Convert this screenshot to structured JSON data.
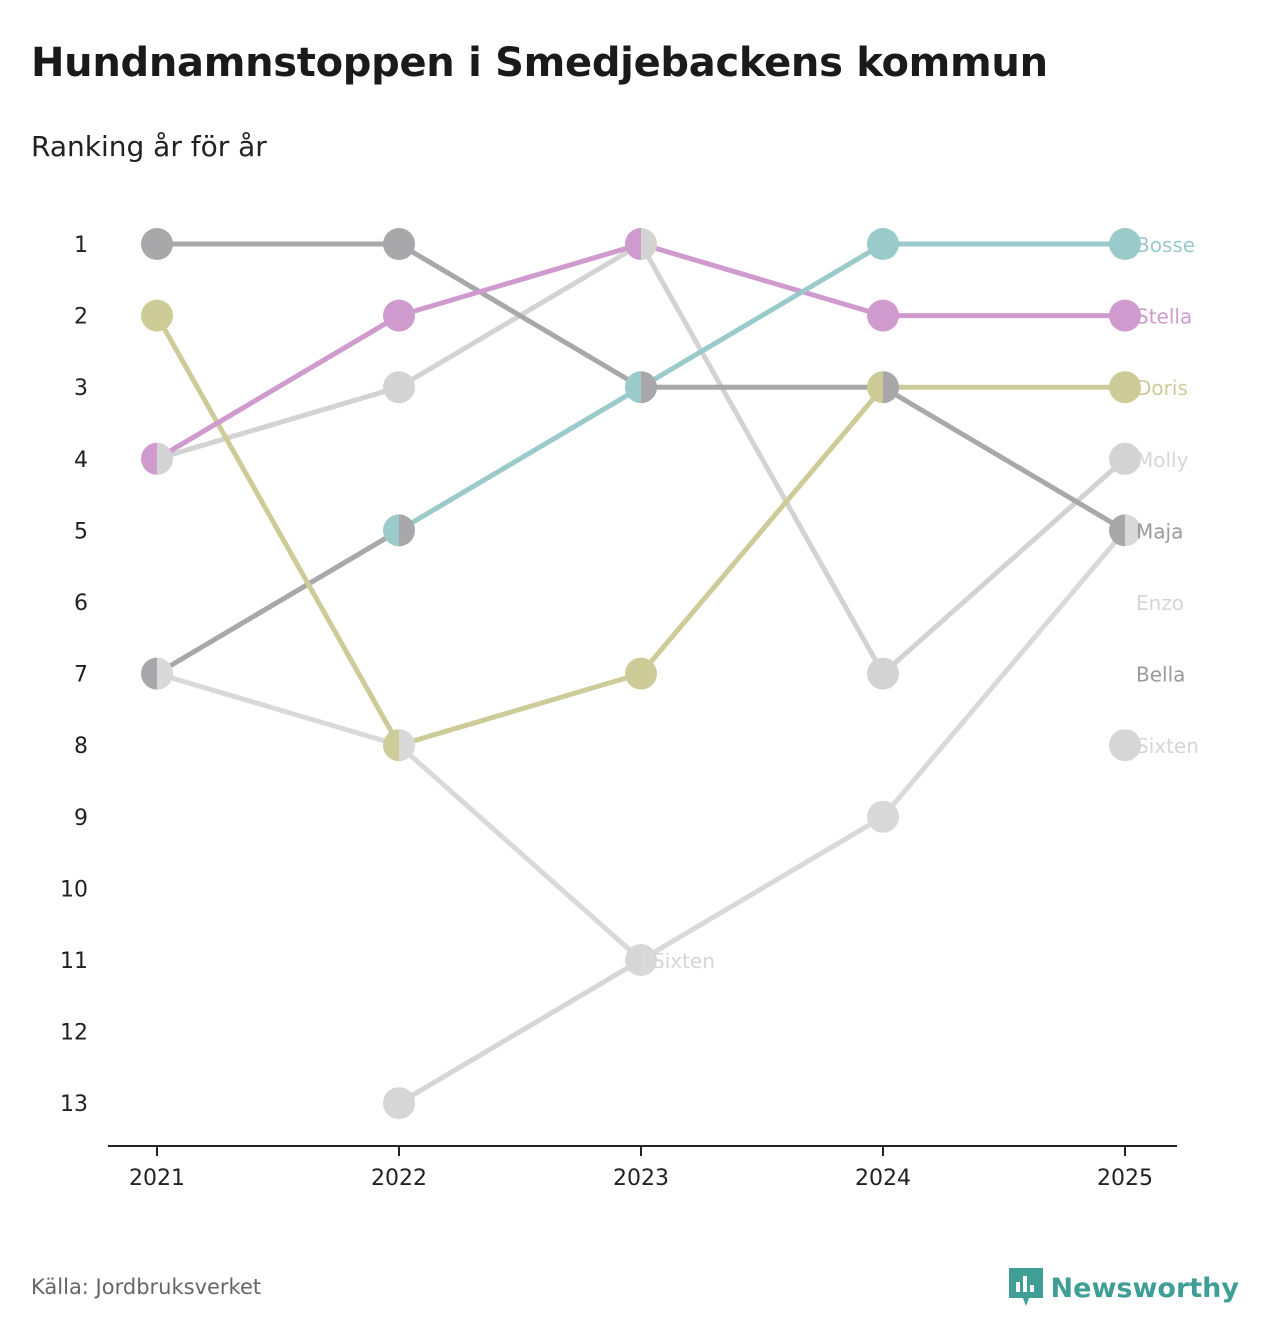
{
  "title": "Hundnamnstoppen i Smedjebackens kommun",
  "subtitle": "Ranking år för år",
  "source": "Källa: Jordbruksverket",
  "brand": "Newsworthy",
  "colors": {
    "Bosse": "#9acbca",
    "Stella": "#cf9bcf",
    "Doris": "#cdcc99",
    "Molly": "#d3d3d3",
    "Maja": "#a8a8aa",
    "MajaDot": "#6b6b70",
    "Enzo": "#d9d9d9",
    "Bella": "#a8a8aa",
    "Sixten": "#d6d6d6",
    "brand": "#3f9e96"
  },
  "chart_data": {
    "type": "line",
    "subtype": "bump",
    "x": [
      "2021",
      "2022",
      "2023",
      "2024",
      "2025"
    ],
    "ylim": [
      1,
      13
    ],
    "yticks": [
      "1",
      "2",
      "3",
      "4",
      "5",
      "6",
      "7",
      "8",
      "9",
      "10",
      "11",
      "12",
      "13"
    ],
    "series": [
      {
        "name": "Bosse",
        "values": [
          null,
          5,
          3,
          1,
          1
        ]
      },
      {
        "name": "Stella",
        "values": [
          4,
          2,
          1,
          2,
          2
        ]
      },
      {
        "name": "Doris",
        "values": [
          2,
          8,
          7,
          3,
          3
        ]
      },
      {
        "name": "Molly",
        "values": [
          4,
          3,
          1,
          7,
          4
        ]
      },
      {
        "name": "Maja",
        "values": [
          1,
          1,
          3,
          3,
          5
        ]
      },
      {
        "name": "Enzo",
        "values": [
          7,
          8,
          11,
          9,
          5
        ]
      },
      {
        "name": "Bella",
        "values": [
          7,
          5,
          null,
          null,
          null
        ]
      },
      {
        "name": "Sixten",
        "values": [
          null,
          13,
          11,
          null,
          8
        ]
      }
    ],
    "end_labels": [
      {
        "name": "Bosse",
        "rank": 1
      },
      {
        "name": "Stella",
        "rank": 2
      },
      {
        "name": "Doris",
        "rank": 3
      },
      {
        "name": "Molly",
        "rank": 4
      },
      {
        "name": "Maja",
        "rank": 5
      },
      {
        "name": "Enzo",
        "rank": 6
      },
      {
        "name": "Bella",
        "rank": 7
      },
      {
        "name": "Sixten",
        "rank": 8
      }
    ],
    "annotations": [
      {
        "text": "Sixten",
        "year": "2023",
        "rank": 11
      }
    ]
  }
}
